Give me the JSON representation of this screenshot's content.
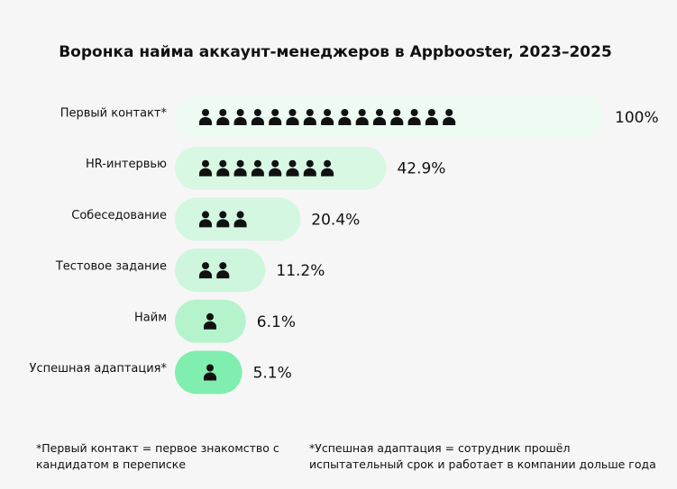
{
  "chart_data": {
    "type": "funnel",
    "title": "Воронка найма аккаунт-менеджеров в Appbooster, 2023–2025",
    "categories": [
      "Первый контакт*",
      "HR-интервью",
      "Собеседование",
      "Тестовое задание",
      "Найм",
      "Успешная адаптация*"
    ],
    "values": [
      100,
      42.9,
      20.4,
      11.2,
      6.1,
      5.1
    ],
    "value_labels": [
      "100%",
      "42.9%",
      "20.4%",
      "11.2%",
      "6.1%",
      "5.1%"
    ],
    "colors": [
      "#eefbf2",
      "#d8f8e3",
      "#d3f7e0",
      "#cdf6dc",
      "#b5f3cd",
      "#80eeae"
    ],
    "xlim": [
      0,
      100
    ],
    "footnotes": [
      "*Первый контакт = первое знакомство с кандидатом в переписке",
      "*Успешная адаптация = сотрудник прошёл испытательный срок и работает в компании дольше года"
    ]
  }
}
